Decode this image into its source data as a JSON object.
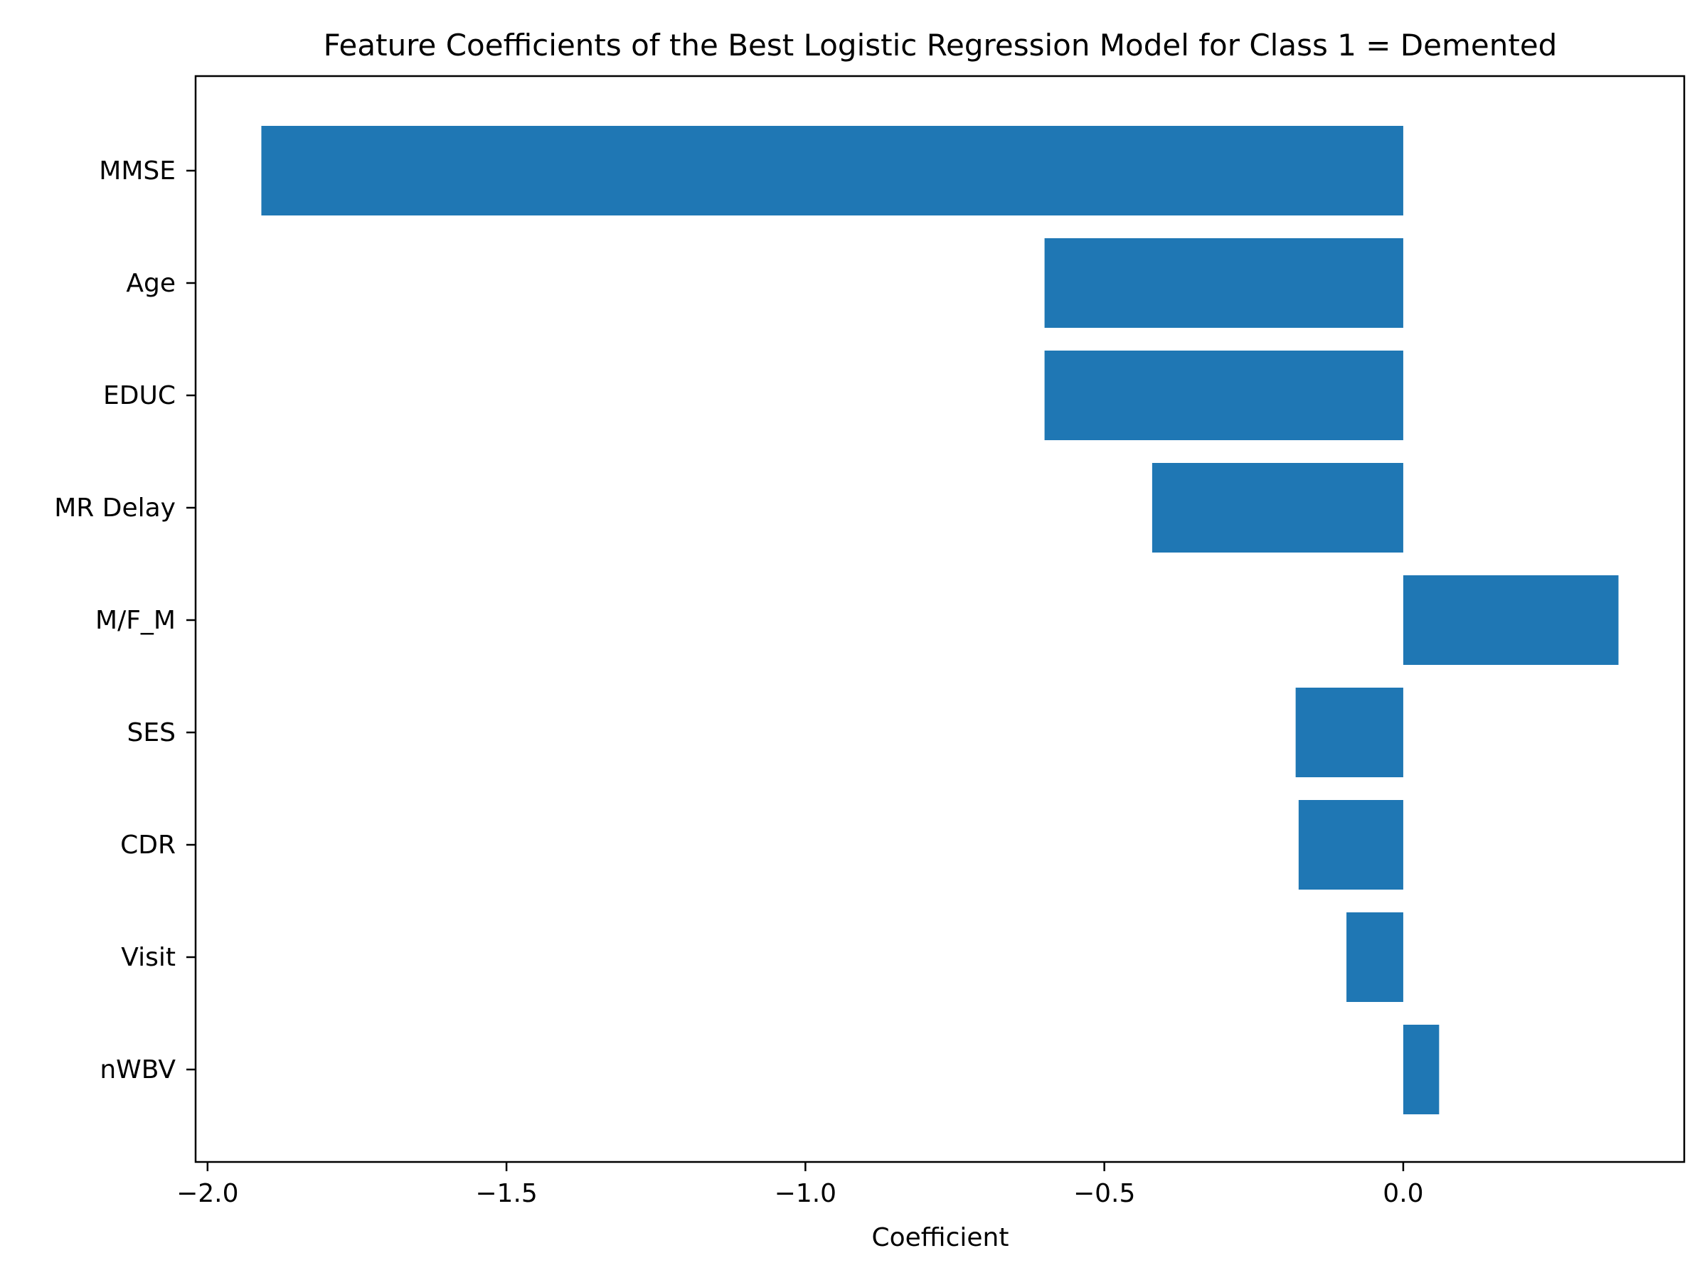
{
  "chart_data": {
    "type": "bar",
    "orientation": "horizontal",
    "title": "Feature Coefficients of the Best Logistic Regression Model for Class 1 = Demented",
    "xlabel": "Coefficient",
    "ylabel": "",
    "categories": [
      "MMSE",
      "Age",
      "EDUC",
      "MR Delay",
      "M/F_M",
      "SES",
      "CDR",
      "Visit",
      "nWBV"
    ],
    "values": [
      -1.91,
      -0.6,
      -0.6,
      -0.42,
      0.36,
      -0.18,
      -0.175,
      -0.095,
      0.06
    ],
    "xlim": [
      -2.02,
      0.47
    ],
    "xticks": [
      -2.0,
      -1.5,
      -1.0,
      -0.5,
      0.0
    ],
    "xtick_labels": [
      "−2.0",
      "−1.5",
      "−1.0",
      "−0.5",
      "0.0"
    ],
    "bar_color": "#1f77b4",
    "grid": false,
    "legend": "none"
  }
}
